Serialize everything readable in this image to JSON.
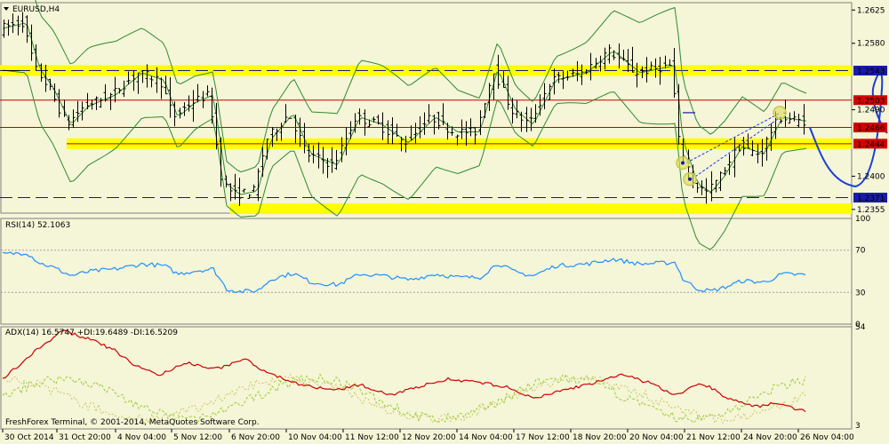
{
  "symbol_label": "EURUSD,H4",
  "price_axis": {
    "ticks": [
      "1.2625",
      "1.2580",
      "1.2490",
      "1.2400",
      "1.2355"
    ],
    "markers": [
      {
        "text": "1.2543",
        "bg": "#1a1aa8"
      },
      {
        "text": "1.2503",
        "bg": "#d40000"
      },
      {
        "text": "1.2466",
        "bg": "#d40000"
      },
      {
        "text": "1.2444",
        "bg": "#d40000"
      },
      {
        "text": "1.2371",
        "bg": "#1a1aa8"
      }
    ]
  },
  "rsi": {
    "label": "RSI(14) 52.1063",
    "ticks": [
      "100",
      "70",
      "30",
      "0"
    ]
  },
  "adx": {
    "label": "ADX(14) 16.5747 +DI:19.6489 -DI:16.5209",
    "ticks": [
      "54",
      "3"
    ]
  },
  "copyright": "FreshForex Terminal, © 2001-2014, MetaQuotes Software Corp.",
  "time_axis": [
    "30 Oct 2014",
    "31 Oct 20:00",
    "4 Nov 04:00",
    "5 Nov 12:00",
    "6 Nov 20:00",
    "10 Nov 04:00",
    "11 Nov 12:00",
    "12 Nov 20:00",
    "14 Nov 04:00",
    "17 Nov 12:00",
    "18 Nov 20:00",
    "20 Nov 04:00",
    "21 Nov 12:00",
    "24 Nov 20:00",
    "26 Nov 04:00"
  ],
  "colors": {
    "bg": "#f5f5d8",
    "zone": "#ffff00",
    "bands": "#2e8b2e",
    "rsi": "#1e90ff",
    "adx": "#d00000",
    "di_plus": "#9acd32",
    "di_minus": "#c8c864",
    "forecast": "#1a3fd8",
    "resistance": "#cc0000",
    "support_dash": "#1a1a80"
  },
  "chart_data": {
    "type": "candlestick",
    "price_range": [
      1.235,
      1.2635
    ],
    "levels": [
      {
        "kind": "zone",
        "price": 1.2543
      },
      {
        "kind": "zone",
        "price": 1.2444
      },
      {
        "kind": "zone",
        "price": 1.2356
      },
      {
        "kind": "line",
        "price": 1.2503
      },
      {
        "kind": "line",
        "price": 1.2466
      },
      {
        "kind": "line",
        "price": 1.2444
      },
      {
        "kind": "dash",
        "price": 1.2543
      },
      {
        "kind": "dash",
        "price": 1.2371
      }
    ],
    "rsi_range": [
      0,
      100
    ],
    "rsi_levels": [
      70,
      30
    ],
    "adx_range": [
      3,
      54
    ]
  }
}
